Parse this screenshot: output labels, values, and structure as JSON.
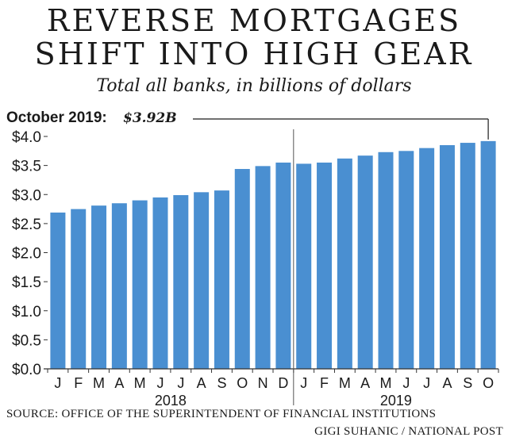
{
  "header": {
    "title_line1": "REVERSE MORTGAGES",
    "title_line2": "SHIFT INTO HIGH GEAR",
    "subtitle": "Total all banks, in billions of dollars"
  },
  "annotation": {
    "label": "October 2019:",
    "value": "$3.92B"
  },
  "footer": {
    "source": "SOURCE: OFFICE OF THE SUPERINTENDENT OF FINANCIAL INSTITUTIONS",
    "credit": "GIGI SUHANIC / NATIONAL POST"
  },
  "chart_data": {
    "type": "bar",
    "categories": [
      "J",
      "F",
      "M",
      "A",
      "M",
      "J",
      "J",
      "A",
      "S",
      "O",
      "N",
      "D",
      "J",
      "F",
      "M",
      "A",
      "M",
      "J",
      "J",
      "A",
      "S",
      "O"
    ],
    "year_groups": [
      {
        "label": "2018",
        "start": 0,
        "end": 11
      },
      {
        "label": "2019",
        "start": 12,
        "end": 21
      }
    ],
    "values": [
      2.69,
      2.75,
      2.81,
      2.85,
      2.9,
      2.95,
      2.99,
      3.04,
      3.07,
      3.44,
      3.49,
      3.55,
      3.53,
      3.55,
      3.62,
      3.67,
      3.73,
      3.75,
      3.8,
      3.85,
      3.89,
      3.92
    ],
    "ylim": [
      0,
      4.0
    ],
    "yticks": [
      0.0,
      0.5,
      1.0,
      1.5,
      2.0,
      2.5,
      3.0,
      3.5,
      4.0
    ],
    "ytick_labels": [
      "$0.0",
      "$0.5",
      "$1.0",
      "$1.5",
      "$2.0",
      "$2.5",
      "$3.0",
      "$3.5",
      "$4.0"
    ],
    "bar_color": "#4a8fd1",
    "grid": false
  }
}
